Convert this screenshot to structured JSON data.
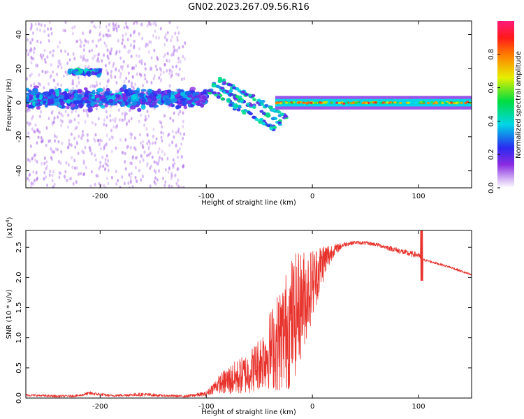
{
  "title": "GN02.2023.267.09.56.R16",
  "colors": {
    "snr_line": "#e8322c",
    "axes": "#000000",
    "background": "#ffffff"
  },
  "chart_data": [
    {
      "type": "heatmap",
      "xlabel": "Height of straight line (km)",
      "ylabel": "Frequency (Hz)",
      "xlim": [
        -270,
        150
      ],
      "ylim": [
        -50,
        48
      ],
      "xticks": [
        -200,
        -100,
        0,
        100
      ],
      "xtick_labels": [
        "-200",
        "-100",
        "0",
        "100"
      ],
      "yticks": [
        -40,
        -20,
        0,
        20,
        40
      ],
      "ytick_labels": [
        "-40",
        "-20",
        "0",
        "20",
        "40"
      ],
      "colorbar": {
        "label": "Normalized spectral amplitude",
        "range": [
          0,
          1
        ],
        "ticks": [
          0.0,
          0.2,
          0.4,
          0.6,
          0.8
        ],
        "tick_labels": [
          "0.0",
          "0.2",
          "0.4",
          "0.6",
          "0.8"
        ],
        "colormap": "rainbow (white-purple-blue-cyan-green-yellow-red-magenta)"
      },
      "features": [
        {
          "description": "broad scattered low-amplitude noise",
          "x_range": [
            -270,
            -120
          ],
          "freq_range": [
            -50,
            48
          ],
          "amplitude": 0.05
        },
        {
          "description": "band near 18 Hz",
          "x_range": [
            -230,
            -200
          ],
          "freq": 18,
          "amplitude": 0.35
        },
        {
          "description": "main band",
          "x_range": [
            -270,
            -100
          ],
          "freq_range": [
            -5,
            10
          ],
          "amplitude": 0.3
        },
        {
          "description": "descending tracks",
          "x_range": [
            -100,
            -35
          ],
          "freq_start": 8,
          "freq_end": -15,
          "amplitude": 0.35
        },
        {
          "description": "narrow line at 0 Hz",
          "x_range": [
            -35,
            150
          ],
          "freq": 0,
          "amplitude": 0.6
        }
      ]
    },
    {
      "type": "line",
      "xlabel": "Height of straight line (km)",
      "ylabel": "SNR (10 * v/v)",
      "y_scale_label": "(x10^4)",
      "y_scale_base": "(x10",
      "y_scale_exp": "4",
      "y_scale_close": ")",
      "xlim": [
        -270,
        150
      ],
      "ylim": [
        0,
        2.78
      ],
      "xticks": [
        -200,
        -100,
        0,
        100
      ],
      "xtick_labels": [
        "-200",
        "-100",
        "0",
        "100"
      ],
      "yticks": [
        0.0,
        0.5,
        1.0,
        1.5,
        2.0,
        2.5
      ],
      "ytick_labels": [
        "0.0",
        "0.5",
        "1.0",
        "1.5",
        "2.0",
        "2.5"
      ],
      "series": [
        {
          "x": [
            -270,
            -240,
            -220,
            -210,
            -190,
            -160,
            -140,
            -120,
            -100,
            -90,
            -80,
            -60,
            -50,
            -40,
            -30,
            -20,
            -10,
            0,
            10,
            20,
            30,
            40,
            50,
            60,
            70,
            80,
            90,
            100,
            103,
            110,
            130,
            150
          ],
          "y": [
            0.05,
            0.03,
            0.04,
            0.08,
            0.04,
            0.06,
            0.04,
            0.03,
            0.07,
            0.22,
            0.28,
            0.42,
            0.58,
            0.8,
            0.98,
            1.25,
            1.58,
            1.9,
            2.25,
            2.45,
            2.55,
            2.58,
            2.57,
            2.55,
            2.5,
            2.45,
            2.4,
            2.37,
            2.3,
            2.27,
            2.17,
            2.04
          ],
          "noise_envelope": [
            0.02,
            0.02,
            0.02,
            0.03,
            0.02,
            0.03,
            0.02,
            0.02,
            0.04,
            0.12,
            0.25,
            0.35,
            0.45,
            0.65,
            0.9,
            1.1,
            0.9,
            0.6,
            0.35,
            0.1,
            0.04,
            0.03,
            0.03,
            0.03,
            0.04,
            0.05,
            0.05,
            0.05,
            0.02,
            0.02,
            0.02,
            0.02
          ]
        }
      ]
    }
  ]
}
